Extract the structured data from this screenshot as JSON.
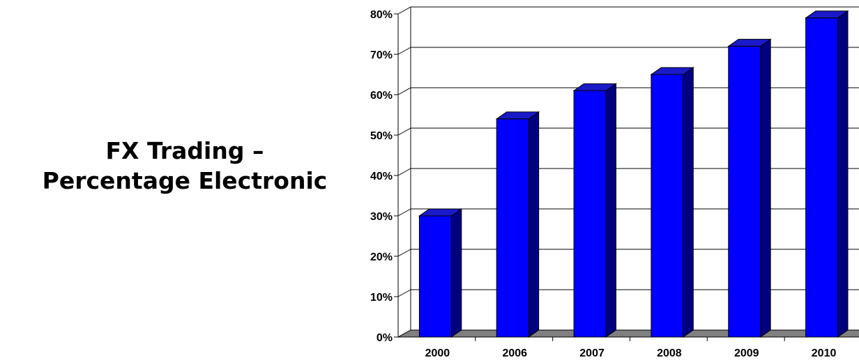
{
  "title": {
    "line1": "FX Trading –",
    "line2": "Percentage Electronic"
  },
  "chart_data": {
    "type": "bar",
    "categories": [
      "2000",
      "2006",
      "2007",
      "2008",
      "2009",
      "2010"
    ],
    "values": [
      30,
      54,
      61,
      65,
      72,
      79
    ],
    "ylim": [
      0,
      80
    ],
    "yticks": [
      "0%",
      "10%",
      "20%",
      "30%",
      "40%",
      "50%",
      "60%",
      "70%",
      "80%"
    ],
    "grid": true,
    "three_d": true,
    "bar_color": "#0000ff",
    "bar_side_color": "#000080",
    "bar_top_color": "#1a1ac8",
    "floor_color": "#808080"
  }
}
